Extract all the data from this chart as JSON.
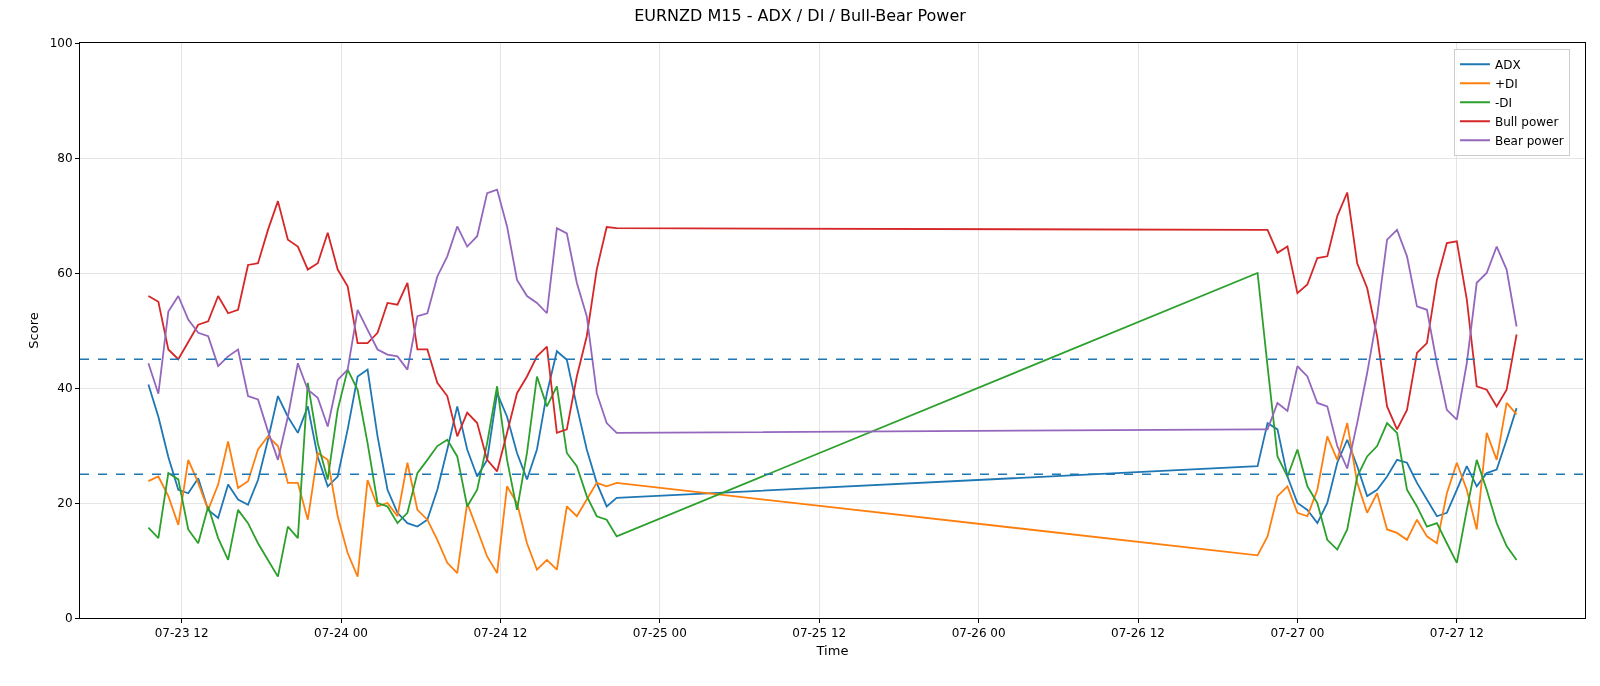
{
  "chart_data": {
    "type": "line",
    "title": "EURNZD M15 - ADX / DI / Bull-Bear Power",
    "xlabel": "Time",
    "ylabel": "Score",
    "x": [
      "--07-23T09:30",
      "--07-23T10:15",
      "--07-23T11:00",
      "--07-23T11:45",
      "--07-23T12:30",
      "--07-23T13:15",
      "--07-23T14:00",
      "--07-23T14:45",
      "--07-23T15:30",
      "--07-23T16:15",
      "--07-23T17:00",
      "--07-23T17:45",
      "--07-23T18:30",
      "--07-23T19:15",
      "--07-23T20:00",
      "--07-23T20:45",
      "--07-23T21:30",
      "--07-23T22:15",
      "--07-23T23:00",
      "--07-23T23:45",
      "--07-24T00:30",
      "--07-24T01:15",
      "--07-24T02:00",
      "--07-24T02:45",
      "--07-24T03:30",
      "--07-24T04:15",
      "--07-24T05:00",
      "--07-24T05:45",
      "--07-24T06:30",
      "--07-24T07:15",
      "--07-24T08:00",
      "--07-24T08:45",
      "--07-24T09:30",
      "--07-24T10:15",
      "--07-24T11:00",
      "--07-24T11:45",
      "--07-24T12:30",
      "--07-24T13:15",
      "--07-24T14:00",
      "--07-24T14:45",
      "--07-24T15:30",
      "--07-24T16:15",
      "--07-24T17:00",
      "--07-24T17:45",
      "--07-24T18:30",
      "--07-24T19:15",
      "--07-24T20:00",
      "--07-24T20:45",
      "--07-26T21:00",
      "--07-26T21:45",
      "--07-26T22:30",
      "--07-26T23:15",
      "--07-27T00:00",
      "--07-27T00:45",
      "--07-27T01:30",
      "--07-27T02:15",
      "--07-27T03:00",
      "--07-27T03:45",
      "--07-27T04:30",
      "--07-27T05:15",
      "--07-27T06:00",
      "--07-27T06:45",
      "--07-27T07:30",
      "--07-27T08:15",
      "--07-27T09:00",
      "--07-27T09:45",
      "--07-27T10:30",
      "--07-27T11:15",
      "--07-27T12:00",
      "--07-27T12:45",
      "--07-27T13:30",
      "--07-27T14:15",
      "--07-27T15:00",
      "--07-27T15:45",
      "--07-27T16:30"
    ],
    "series": [
      {
        "name": "ADX",
        "color": "#1f77b4",
        "values": [
          40.6,
          35,
          28,
          22.3,
          21.7,
          24.3,
          18.8,
          17.4,
          23.2,
          20.6,
          19.7,
          24,
          31,
          38.6,
          35,
          32.2,
          36.8,
          28,
          22.9,
          24.6,
          32.8,
          42,
          43.2,
          31.6,
          22.3,
          18.3,
          16.5,
          15.9,
          17.1,
          22.3,
          29.3,
          36.8,
          29.3,
          24.6,
          27.5,
          39.1,
          35,
          28.7,
          24.1,
          29.3,
          39.1,
          46.4,
          44.9,
          36.8,
          29.3,
          23.5,
          19.4,
          20.9,
          26.4,
          33.9,
          32.8,
          24.6,
          20,
          18.8,
          16.5,
          20,
          27,
          31,
          26.4,
          21.2,
          22.3,
          24.6,
          27.5,
          27,
          23.5,
          20.6,
          17.7,
          18.3,
          22.3,
          26.4,
          22.9,
          25.2,
          25.8,
          31,
          36.5
        ]
      },
      {
        "name": "+DI",
        "color": "#ff7f0e",
        "values": [
          23.8,
          24.6,
          21.2,
          16.2,
          27.5,
          23.5,
          18.8,
          23.2,
          30.7,
          22.6,
          23.8,
          29.3,
          31.6,
          29.9,
          23.5,
          23.5,
          17.1,
          28.7,
          27.5,
          17.7,
          11.3,
          7.2,
          24,
          19.4,
          20,
          17.7,
          27,
          18.8,
          17.1,
          13.6,
          9.6,
          7.8,
          20,
          15.4,
          10.7,
          7.8,
          22.9,
          20,
          13,
          8.4,
          10.1,
          8.4,
          19.4,
          17.7,
          20.6,
          23.5,
          22.9,
          23.5,
          10.9,
          14.2,
          21.2,
          22.9,
          18.3,
          17.7,
          22.3,
          31.6,
          27.5,
          33.9,
          23.5,
          18.3,
          21.7,
          15.4,
          14.8,
          13.6,
          17.1,
          14.2,
          13,
          21.7,
          27,
          22.3,
          15.4,
          32.2,
          27.5,
          37.4,
          35.4
        ]
      },
      {
        "name": "-DI",
        "color": "#2ca02c",
        "values": [
          15.7,
          13.9,
          25.2,
          24.1,
          15.4,
          13,
          19.4,
          13.9,
          10.1,
          18.8,
          16.5,
          13,
          10.1,
          7.2,
          15.9,
          13.9,
          40.9,
          30.4,
          24.1,
          36.2,
          43.2,
          39.7,
          30.4,
          20,
          19.4,
          16.5,
          18.3,
          25.2,
          27.5,
          29.9,
          31,
          28.1,
          19.4,
          22.3,
          30.4,
          40.3,
          27.5,
          18.8,
          28.7,
          42,
          36.8,
          40.3,
          28.7,
          26.4,
          21.2,
          17.7,
          17.1,
          14.2,
          60,
          43.8,
          28.1,
          24.6,
          29.3,
          22.9,
          20,
          13.6,
          11.9,
          15.4,
          24.6,
          28.1,
          29.9,
          33.9,
          32.2,
          22.3,
          19.4,
          15.9,
          16.5,
          13,
          9.6,
          18.8,
          27.5,
          22.3,
          16.5,
          12.5,
          10.1
        ]
      },
      {
        "name": "Bull power",
        "color": "#d62728",
        "values": [
          56,
          55,
          46.7,
          45,
          48,
          51,
          51.6,
          56,
          53,
          53.6,
          61.4,
          61.7,
          67.5,
          72.5,
          65.8,
          64.6,
          60.6,
          61.7,
          67,
          60.6,
          57.7,
          47.8,
          47.8,
          49.6,
          54.8,
          54.5,
          58.3,
          46.7,
          46.7,
          40.9,
          38.6,
          31.6,
          35.7,
          33.9,
          27.5,
          25.5,
          32.2,
          39.1,
          42,
          45.5,
          47.2,
          32.2,
          32.8,
          42,
          49,
          60.6,
          68,
          67.8,
          67.5,
          67.5,
          63.5,
          64.6,
          56.5,
          58,
          62.6,
          62.9,
          69.9,
          74,
          61.7,
          57.4,
          49,
          36.8,
          32.8,
          36.2,
          46.1,
          47.8,
          58.8,
          65.2,
          65.5,
          55.4,
          40.3,
          39.7,
          36.8,
          39.7,
          49.3
        ]
      },
      {
        "name": "Bear power",
        "color": "#9467bd",
        "values": [
          44.3,
          39,
          53.3,
          56,
          51.9,
          49.6,
          49,
          43.8,
          45.5,
          46.7,
          38.6,
          38,
          32.5,
          27.5,
          35,
          44.3,
          39.7,
          38.3,
          33.3,
          41.4,
          43.2,
          53.6,
          50.1,
          46.7,
          45.8,
          45.5,
          43.2,
          52.5,
          53,
          59.4,
          62.9,
          68.1,
          64.6,
          66.4,
          73.9,
          74.5,
          68.1,
          58.8,
          56,
          54.8,
          53,
          67.8,
          66.9,
          58.3,
          52.5,
          39.1,
          33.9,
          32.2,
          32.8,
          32.8,
          37.4,
          36,
          43.8,
          42,
          37.4,
          36.8,
          29.9,
          26,
          33.9,
          42.6,
          52.5,
          65.8,
          67.5,
          62.9,
          54.2,
          53.6,
          44.3,
          36.2,
          34.5,
          44.3,
          58.3,
          60,
          64.6,
          60.6,
          50.7
        ]
      }
    ],
    "xlim": [
      "--07-23T04:21",
      "--07-27T21:39"
    ],
    "xticks": [
      {
        "value": "--07-23T12:00",
        "label": "07-23 12"
      },
      {
        "value": "--07-24T00:00",
        "label": "07-24 00"
      },
      {
        "value": "--07-24T12:00",
        "label": "07-24 12"
      },
      {
        "value": "--07-25T00:00",
        "label": "07-25 00"
      },
      {
        "value": "--07-25T12:00",
        "label": "07-25 12"
      },
      {
        "value": "--07-26T00:00",
        "label": "07-26 00"
      },
      {
        "value": "--07-26T12:00",
        "label": "07-26 12"
      },
      {
        "value": "--07-27T00:00",
        "label": "07-27 00"
      },
      {
        "value": "--07-27T12:00",
        "label": "07-27 12"
      }
    ],
    "ylim": [
      0,
      100
    ],
    "yticks": [
      0,
      20,
      40,
      60,
      80,
      100
    ],
    "ref_lines": [
      {
        "axis": "y",
        "value": 45,
        "color": "#1f77b4",
        "line_style": "dashed"
      },
      {
        "axis": "y",
        "value": 25,
        "color": "#1f77b4",
        "line_style": "dashed"
      }
    ],
    "grid": true,
    "legend": "top right",
    "line_style": "solid",
    "marker": "none"
  }
}
